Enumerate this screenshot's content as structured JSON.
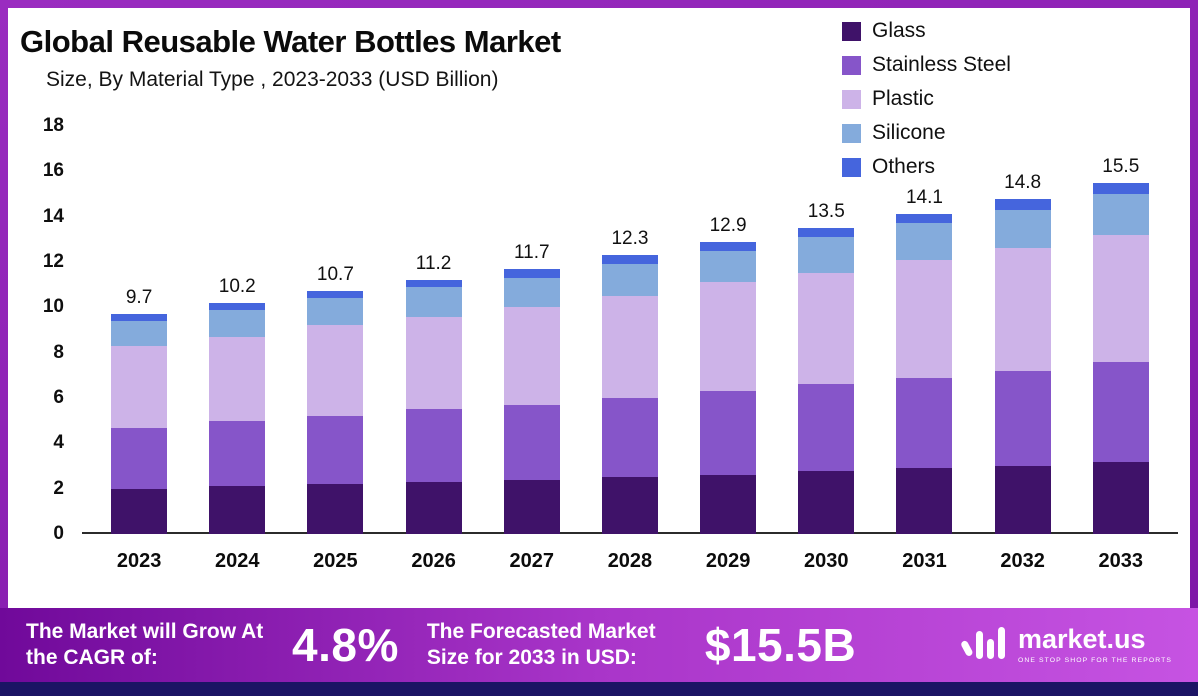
{
  "header": {
    "title": "Global Reusable Water Bottles Market",
    "subtitle": "Size, By Material Type , 2023-2033 (USD Billion)"
  },
  "chart_data": {
    "type": "bar",
    "stacked": true,
    "title": "Global Reusable Water Bottles Market Size, By Material Type, 2023-2033 (USD Billion)",
    "xlabel": "",
    "ylabel": "",
    "ylim": [
      0,
      18
    ],
    "y_ticks": [
      0,
      2,
      4,
      6,
      8,
      10,
      12,
      14,
      16,
      18
    ],
    "grid": false,
    "legend_position": "top-right",
    "categories": [
      "2023",
      "2024",
      "2025",
      "2026",
      "2027",
      "2028",
      "2029",
      "2030",
      "2031",
      "2032",
      "2033"
    ],
    "series": [
      {
        "name": "Glass",
        "color": "#3f1269",
        "values": [
          2.0,
          2.1,
          2.2,
          2.3,
          2.4,
          2.5,
          2.6,
          2.8,
          2.9,
          3.0,
          3.2
        ]
      },
      {
        "name": "Stainless Steel",
        "color": "#8655c9",
        "values": [
          2.7,
          2.9,
          3.0,
          3.2,
          3.3,
          3.5,
          3.7,
          3.8,
          4.0,
          4.2,
          4.4
        ]
      },
      {
        "name": "Plastic",
        "color": "#cdb3e8",
        "values": [
          3.6,
          3.7,
          4.0,
          4.1,
          4.3,
          4.5,
          4.8,
          4.9,
          5.2,
          5.4,
          5.6
        ]
      },
      {
        "name": "Silicone",
        "color": "#84abdc",
        "values": [
          1.1,
          1.2,
          1.2,
          1.3,
          1.3,
          1.4,
          1.4,
          1.6,
          1.6,
          1.7,
          1.8
        ]
      },
      {
        "name": "Others",
        "color": "#4565dd",
        "values": [
          0.3,
          0.3,
          0.3,
          0.3,
          0.4,
          0.4,
          0.4,
          0.4,
          0.4,
          0.5,
          0.5
        ]
      }
    ],
    "totals": [
      9.7,
      10.2,
      10.7,
      11.2,
      11.7,
      12.3,
      12.9,
      13.5,
      14.1,
      14.8,
      15.5
    ]
  },
  "banner": {
    "cagr_label": "The Market will Grow At the CAGR of:",
    "cagr_value": "4.8%",
    "forecast_label": "The Forecasted Market Size for 2033 in USD:",
    "forecast_value": "$15.5B",
    "brand": "market.us",
    "brand_tagline": "ONE STOP SHOP FOR THE REPORTS"
  },
  "colors": {
    "frame": "#8e24b4",
    "banner_gradient_start": "#70099a",
    "banner_gradient_end": "#c653e2",
    "bottom_strip": "#1b1464"
  }
}
